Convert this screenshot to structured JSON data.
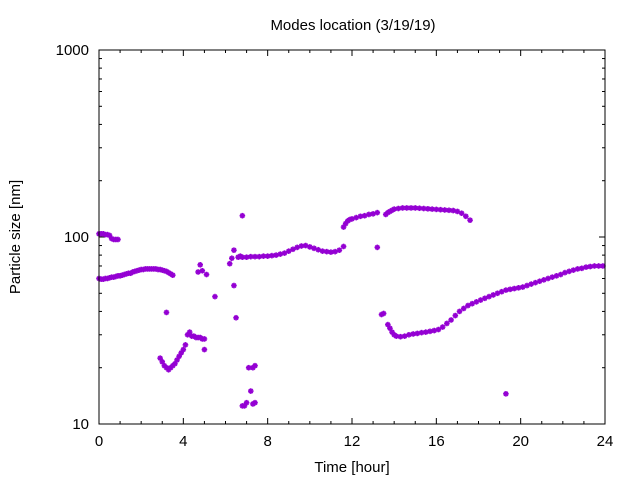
{
  "chart_data": {
    "type": "scatter",
    "title": "Modes location (3/19/19)",
    "xlabel": "Time [hour]",
    "ylabel": "Particle size [nm]",
    "xlim": [
      0,
      24
    ],
    "ylim": [
      10,
      1000
    ],
    "yscale": "log",
    "grid": false,
    "marker_color": "#9400d3",
    "x_ticks": [
      0,
      4,
      8,
      12,
      16,
      20,
      24
    ],
    "y_ticks": [
      10,
      100,
      1000
    ],
    "series": [
      {
        "points": [
          [
            0.0,
            104
          ],
          [
            0.1,
            104
          ],
          [
            0.2,
            104
          ],
          [
            0.3,
            103
          ],
          [
            0.4,
            103
          ],
          [
            0.5,
            102
          ],
          [
            0.6,
            98
          ],
          [
            0.7,
            97
          ],
          [
            0.8,
            97
          ],
          [
            0.9,
            97
          ],
          [
            0.0,
            60
          ],
          [
            0.1,
            59.5
          ],
          [
            0.2,
            59.5
          ],
          [
            0.3,
            60
          ],
          [
            0.4,
            60
          ],
          [
            0.5,
            60.5
          ],
          [
            0.6,
            61
          ],
          [
            0.7,
            61
          ],
          [
            0.8,
            61.5
          ],
          [
            0.9,
            62
          ],
          [
            1.0,
            62
          ],
          [
            1.1,
            62.5
          ],
          [
            1.2,
            63
          ],
          [
            1.3,
            63.5
          ],
          [
            1.4,
            64
          ],
          [
            1.5,
            64
          ],
          [
            1.6,
            65
          ],
          [
            1.7,
            65.5
          ],
          [
            1.8,
            66
          ],
          [
            1.9,
            66.5
          ],
          [
            2.0,
            67
          ],
          [
            2.1,
            67
          ],
          [
            2.2,
            67.5
          ],
          [
            2.3,
            67.5
          ],
          [
            2.4,
            67.5
          ],
          [
            2.5,
            67.5
          ],
          [
            2.6,
            67.5
          ],
          [
            2.7,
            67.5
          ],
          [
            2.8,
            67
          ],
          [
            2.9,
            67
          ],
          [
            3.0,
            66.5
          ],
          [
            3.1,
            66
          ],
          [
            3.2,
            65.5
          ],
          [
            3.3,
            64.5
          ],
          [
            3.4,
            63.5
          ],
          [
            3.5,
            62.5
          ],
          [
            2.9,
            22.5
          ],
          [
            3.0,
            21.5
          ],
          [
            3.1,
            20.5
          ],
          [
            3.2,
            20
          ],
          [
            3.3,
            19.5
          ],
          [
            3.4,
            20
          ],
          [
            3.5,
            20.5
          ],
          [
            3.6,
            21
          ],
          [
            3.7,
            22
          ],
          [
            3.8,
            23
          ],
          [
            3.9,
            24
          ],
          [
            4.0,
            25
          ],
          [
            4.1,
            26.5
          ],
          [
            3.2,
            39.5
          ],
          [
            4.2,
            30
          ],
          [
            4.3,
            31
          ],
          [
            4.4,
            29.5
          ],
          [
            4.5,
            29.5
          ],
          [
            4.6,
            29
          ],
          [
            4.7,
            29
          ],
          [
            4.8,
            29
          ],
          [
            4.9,
            28.5
          ],
          [
            5.0,
            28.5
          ],
          [
            5.0,
            25
          ],
          [
            4.7,
            65
          ],
          [
            4.8,
            71
          ],
          [
            4.9,
            66
          ],
          [
            5.1,
            63
          ],
          [
            5.5,
            48
          ],
          [
            6.2,
            72
          ],
          [
            6.3,
            77
          ],
          [
            6.4,
            85
          ],
          [
            6.4,
            55
          ],
          [
            6.5,
            37
          ],
          [
            6.6,
            78
          ],
          [
            6.7,
            79
          ],
          [
            6.8,
            130
          ],
          [
            6.8,
            12.5
          ],
          [
            6.9,
            12.5
          ],
          [
            7.0,
            13
          ],
          [
            7.1,
            20
          ],
          [
            7.2,
            15
          ],
          [
            7.3,
            20
          ],
          [
            7.3,
            12.8
          ],
          [
            7.4,
            20.5
          ],
          [
            7.4,
            13
          ],
          [
            6.8,
            78
          ],
          [
            7.0,
            78
          ],
          [
            7.2,
            78.5
          ],
          [
            7.4,
            78.5
          ],
          [
            7.6,
            78.5
          ],
          [
            7.8,
            79
          ],
          [
            8.0,
            79
          ],
          [
            8.2,
            79.5
          ],
          [
            8.4,
            80
          ],
          [
            8.6,
            81
          ],
          [
            8.8,
            82
          ],
          [
            9.0,
            84
          ],
          [
            9.2,
            86
          ],
          [
            9.4,
            88
          ],
          [
            9.6,
            89.5
          ],
          [
            9.8,
            90
          ],
          [
            10.0,
            88.5
          ],
          [
            10.2,
            87
          ],
          [
            10.4,
            85.5
          ],
          [
            10.6,
            84
          ],
          [
            10.8,
            83.5
          ],
          [
            11.0,
            83
          ],
          [
            11.2,
            83.5
          ],
          [
            11.4,
            85
          ],
          [
            11.6,
            89
          ],
          [
            11.6,
            113
          ],
          [
            11.7,
            118
          ],
          [
            11.8,
            122
          ],
          [
            11.9,
            124
          ],
          [
            12.0,
            125
          ],
          [
            12.2,
            127
          ],
          [
            12.4,
            129
          ],
          [
            12.6,
            130
          ],
          [
            12.8,
            132
          ],
          [
            13.0,
            133
          ],
          [
            13.2,
            135
          ],
          [
            13.2,
            88
          ],
          [
            13.4,
            38.5
          ],
          [
            13.5,
            39
          ],
          [
            13.7,
            34
          ],
          [
            13.8,
            32.5
          ],
          [
            13.9,
            31
          ],
          [
            14.0,
            30
          ],
          [
            14.1,
            29.5
          ],
          [
            14.3,
            29.3
          ],
          [
            14.5,
            29.5
          ],
          [
            14.7,
            30
          ],
          [
            14.9,
            30.3
          ],
          [
            15.1,
            30.5
          ],
          [
            15.3,
            30.8
          ],
          [
            15.5,
            31
          ],
          [
            15.7,
            31.3
          ],
          [
            15.9,
            31.6
          ],
          [
            16.1,
            32
          ],
          [
            16.3,
            33
          ],
          [
            16.5,
            34.5
          ],
          [
            16.7,
            36
          ],
          [
            16.9,
            38
          ],
          [
            17.1,
            40
          ],
          [
            17.3,
            41.5
          ],
          [
            17.5,
            43
          ],
          [
            17.7,
            44
          ],
          [
            17.9,
            45
          ],
          [
            18.1,
            46
          ],
          [
            18.3,
            47
          ],
          [
            18.5,
            48
          ],
          [
            18.7,
            49
          ],
          [
            18.9,
            50
          ],
          [
            19.1,
            51
          ],
          [
            19.3,
            52
          ],
          [
            19.5,
            52.5
          ],
          [
            19.7,
            53
          ],
          [
            19.9,
            53.5
          ],
          [
            20.1,
            54
          ],
          [
            20.3,
            55
          ],
          [
            20.5,
            56
          ],
          [
            20.7,
            57
          ],
          [
            20.9,
            58
          ],
          [
            21.1,
            59
          ],
          [
            21.3,
            60
          ],
          [
            21.5,
            61
          ],
          [
            21.7,
            62
          ],
          [
            21.9,
            63
          ],
          [
            22.1,
            64.5
          ],
          [
            22.3,
            65.5
          ],
          [
            22.5,
            66.5
          ],
          [
            22.7,
            67.5
          ],
          [
            22.9,
            68
          ],
          [
            23.1,
            69
          ],
          [
            23.3,
            69.5
          ],
          [
            23.5,
            70
          ],
          [
            23.7,
            70
          ],
          [
            23.9,
            70
          ],
          [
            19.3,
            14.5
          ],
          [
            13.6,
            132
          ],
          [
            13.7,
            135
          ],
          [
            13.8,
            137
          ],
          [
            13.9,
            139
          ],
          [
            14.0,
            141
          ],
          [
            14.2,
            142
          ],
          [
            14.4,
            143
          ],
          [
            14.6,
            143
          ],
          [
            14.8,
            143
          ],
          [
            15.0,
            143
          ],
          [
            15.2,
            142.5
          ],
          [
            15.4,
            142
          ],
          [
            15.6,
            141.5
          ],
          [
            15.8,
            141
          ],
          [
            16.0,
            140.5
          ],
          [
            16.2,
            140
          ],
          [
            16.4,
            139.5
          ],
          [
            16.6,
            139
          ],
          [
            16.8,
            138.5
          ],
          [
            17.0,
            137
          ],
          [
            17.2,
            134
          ],
          [
            17.4,
            129
          ],
          [
            17.6,
            123
          ]
        ]
      }
    ]
  }
}
